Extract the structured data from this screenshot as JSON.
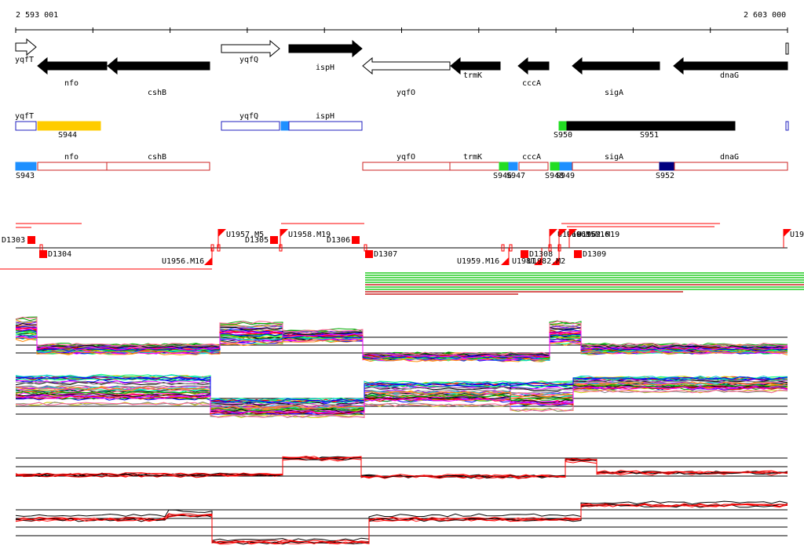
{
  "coords": {
    "start": "2 593 001",
    "end": "2 603 000"
  },
  "genes": [
    {
      "name": "yqfT",
      "strand": "+",
      "fill": "outline",
      "label": "yqfT"
    },
    {
      "name": "nfo",
      "strand": "-",
      "fill": "solid",
      "label": "nfo"
    },
    {
      "name": "cshB",
      "strand": "-",
      "fill": "solid",
      "label": "cshB"
    },
    {
      "name": "yqfQ",
      "strand": "+",
      "fill": "outline",
      "label": "yqfQ"
    },
    {
      "name": "ispH",
      "strand": "+",
      "fill": "solid",
      "label": "ispH"
    },
    {
      "name": "yqfO",
      "strand": "-",
      "fill": "outline",
      "label": "yqfO"
    },
    {
      "name": "trmK",
      "strand": "-",
      "fill": "solid",
      "label": "trmK"
    },
    {
      "name": "cccA",
      "strand": "-",
      "fill": "solid",
      "label": "cccA"
    },
    {
      "name": "sigA",
      "strand": "-",
      "fill": "solid",
      "label": "sigA"
    },
    {
      "name": "dnaG",
      "strand": "-",
      "fill": "solid",
      "label": "dnaG"
    }
  ],
  "segments_plus": [
    {
      "label": "yqfT",
      "color": "#ffffff",
      "border": "#1f1fbf"
    },
    {
      "label": "S944",
      "color": "#ffcc00",
      "border": "#ffcc00"
    },
    {
      "label": "yqfQ",
      "color": "#ffffff",
      "border": "#1f1fbf"
    },
    {
      "label": "",
      "color": "#1e90ff",
      "border": "#1e90ff"
    },
    {
      "label": "ispH",
      "color": "#ffffff",
      "border": "#1f1fbf"
    },
    {
      "label": "S950",
      "color": "#22dd22",
      "border": "#22dd22"
    },
    {
      "label": "S951",
      "color": "#000000",
      "border": "#000000"
    },
    {
      "label": "",
      "color": "#ffffff",
      "border": "#1f1fbf"
    }
  ],
  "segments_minus": [
    {
      "label": "S943",
      "color": "#1e90ff",
      "border": "#1e90ff"
    },
    {
      "label": "nfo",
      "color": "#ffffff",
      "border": "#cc2222"
    },
    {
      "label": "cshB",
      "color": "#ffffff",
      "border": "#cc2222"
    },
    {
      "label": "yqfO",
      "color": "#ffffff",
      "border": "#cc2222"
    },
    {
      "label": "trmK",
      "color": "#ffffff",
      "border": "#cc2222"
    },
    {
      "label": "S946",
      "color": "#22dd22",
      "border": "#22dd22"
    },
    {
      "label": "S947",
      "color": "#1e90ff",
      "border": "#1e90ff"
    },
    {
      "label": "cccA",
      "color": "#ffffff",
      "border": "#cc2222"
    },
    {
      "label": "S948",
      "color": "#22dd22",
      "border": "#22dd22"
    },
    {
      "label": "S949",
      "color": "#1e90ff",
      "border": "#1e90ff"
    },
    {
      "label": "sigA",
      "color": "#ffffff",
      "border": "#cc2222"
    },
    {
      "label": "S952",
      "color": "#000080",
      "border": "#000080"
    },
    {
      "label": "dnaG",
      "color": "#ffffff",
      "border": "#cc2222"
    }
  ],
  "features_up": [
    {
      "label": "U1957.M5"
    },
    {
      "label": "U1958.M19"
    },
    {
      "label": "U1960.M5"
    },
    {
      "label": "U1961.M16"
    },
    {
      "label": "U1962.M19"
    },
    {
      "label": "U19"
    }
  ],
  "features_down": [
    {
      "label": "U1956.M16"
    },
    {
      "label": "U1959.M16"
    },
    {
      "label": "U1981"
    },
    {
      "label": "U1982.M2"
    }
  ],
  "boxes_up": [
    {
      "label": "D1303"
    },
    {
      "label": "D1305"
    },
    {
      "label": "D1306"
    }
  ],
  "boxes_down": [
    {
      "label": "D1304"
    },
    {
      "label": "D1307"
    },
    {
      "label": "D1308"
    },
    {
      "label": "D1309"
    }
  ],
  "colors": {
    "gene": "#000000",
    "feature": "#ff0000",
    "track_line": "#000000",
    "green_bar": "#22cc22",
    "red_bar": "#cc2222"
  }
}
